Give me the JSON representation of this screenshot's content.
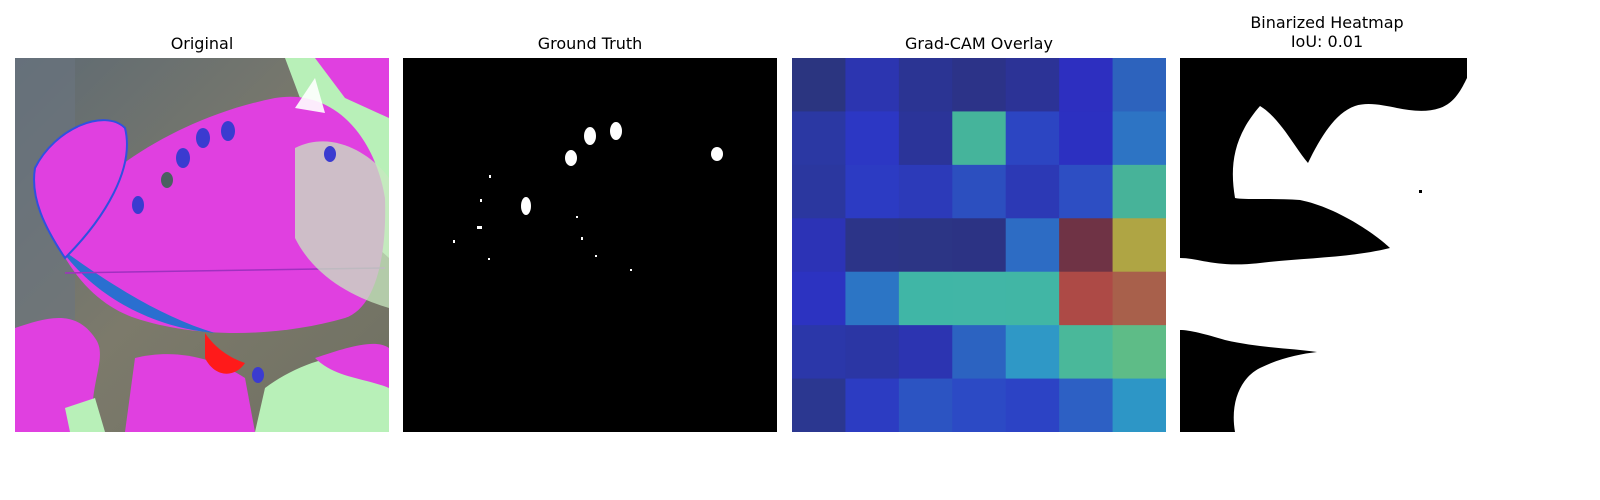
{
  "panels": [
    {
      "title": "Original"
    },
    {
      "title": "Ground Truth"
    },
    {
      "title": "Grad-CAM Overlay"
    },
    {
      "title": "Binarized Heatmap",
      "subtitle": "IoU: 0.01"
    }
  ],
  "gradcam_grid": [
    [
      "#2b3580",
      "#2c35b0",
      "#2b3493",
      "#2c3388",
      "#2c3396",
      "#2d2fc0",
      "#2d63bd"
    ],
    [
      "#2b38a3",
      "#2c37c4",
      "#2b3499",
      "#45b49b",
      "#2c45c2",
      "#2c30c1",
      "#2d74c4"
    ],
    [
      "#2b379f",
      "#2c3bc3",
      "#2c3ab9",
      "#2c4fbf",
      "#2c39b5",
      "#2d4ec3",
      "#47b399"
    ],
    [
      "#2c33b6",
      "#2c3488",
      "#2c3585",
      "#2c3384",
      "#2d6cc4",
      "#6f3345",
      "#afa544"
    ],
    [
      "#2c33c1",
      "#2c75c5",
      "#40b6a6",
      "#41b6a6",
      "#41b6a5",
      "#ad4a46",
      "#a8604b"
    ],
    [
      "#2b37a9",
      "#2b36a4",
      "#2c34b1",
      "#2c63c1",
      "#2f98c6",
      "#4ab89a",
      "#5ebc87"
    ],
    [
      "#2b3790",
      "#2c3cc2",
      "#2c54c2",
      "#2c4ac5",
      "#2c43c5",
      "#2d60c4",
      "#2d96c6"
    ]
  ],
  "colors": {
    "mask_bg": "#000000",
    "mask_fg": "#ffffff",
    "leaf": "#e040e0",
    "lesion": "#b8f0b8"
  }
}
